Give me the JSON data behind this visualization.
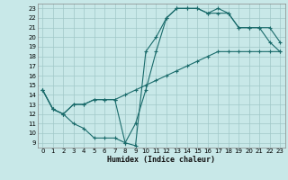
{
  "xlabel": "Humidex (Indice chaleur)",
  "bg_color": "#c8e8e8",
  "grid_color": "#a0c8c8",
  "line_color": "#1a6b6b",
  "xlim": [
    -0.5,
    23.5
  ],
  "ylim": [
    8.5,
    23.5
  ],
  "xticks": [
    0,
    1,
    2,
    3,
    4,
    5,
    6,
    7,
    8,
    9,
    10,
    11,
    12,
    13,
    14,
    15,
    16,
    17,
    18,
    19,
    20,
    21,
    22,
    23
  ],
  "yticks": [
    9,
    10,
    11,
    12,
    13,
    14,
    15,
    16,
    17,
    18,
    19,
    20,
    21,
    22,
    23
  ],
  "curve1_x": [
    0,
    1,
    2,
    3,
    4,
    5,
    6,
    7,
    8,
    9,
    10,
    11,
    12,
    13,
    14,
    15,
    16,
    17,
    18,
    19,
    20,
    21,
    22,
    23
  ],
  "curve1_y": [
    14.5,
    12.5,
    12.0,
    11.0,
    10.5,
    9.5,
    9.5,
    9.5,
    9.0,
    8.7,
    18.5,
    20.0,
    22.0,
    23.0,
    23.0,
    23.0,
    22.5,
    23.0,
    22.5,
    21.0,
    21.0,
    21.0,
    19.5,
    18.5
  ],
  "curve2_x": [
    0,
    1,
    2,
    3,
    4,
    5,
    6,
    7,
    8,
    9,
    10,
    11,
    12,
    13,
    14,
    15,
    16,
    17,
    18,
    19,
    20,
    21,
    22,
    23
  ],
  "curve2_y": [
    14.5,
    12.5,
    12.0,
    13.0,
    13.0,
    13.5,
    13.5,
    13.5,
    14.0,
    14.5,
    15.0,
    15.5,
    16.0,
    16.5,
    17.0,
    17.5,
    18.0,
    18.5,
    18.5,
    18.5,
    18.5,
    18.5,
    18.5,
    18.5
  ],
  "curve3_x": [
    0,
    1,
    2,
    3,
    4,
    5,
    6,
    7,
    8,
    9,
    10,
    11,
    12,
    13,
    14,
    15,
    16,
    17,
    18,
    19,
    20,
    21,
    22,
    23
  ],
  "curve3_y": [
    14.5,
    12.5,
    12.0,
    13.0,
    13.0,
    13.5,
    13.5,
    13.5,
    9.0,
    11.0,
    14.5,
    18.5,
    22.0,
    23.0,
    23.0,
    23.0,
    22.5,
    22.5,
    22.5,
    21.0,
    21.0,
    21.0,
    21.0,
    19.5
  ],
  "xlabel_fontsize": 6,
  "tick_fontsize": 5,
  "lw": 0.8,
  "ms": 2.5
}
